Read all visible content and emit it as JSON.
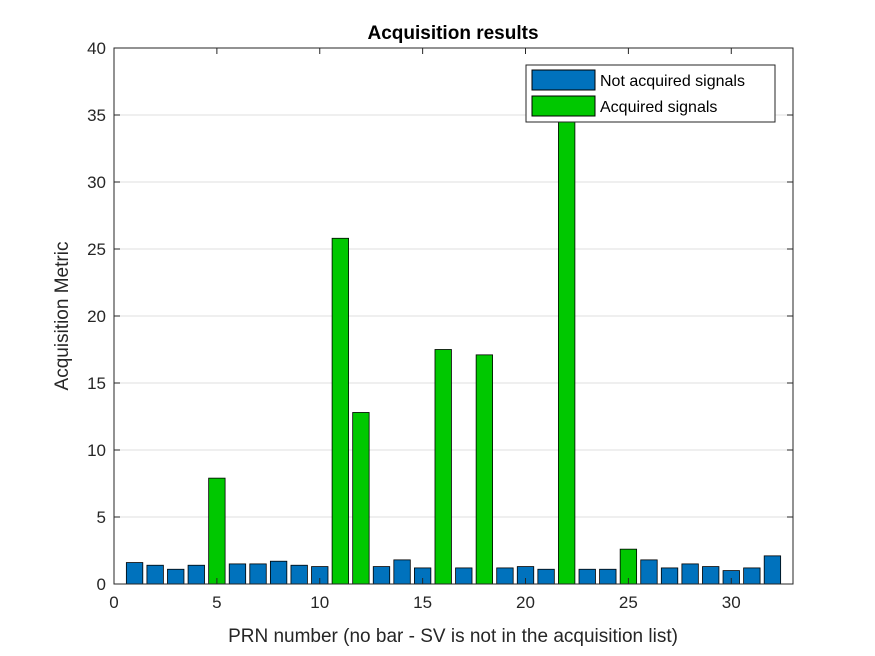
{
  "chart_data": {
    "type": "bar",
    "title": "Acquisition results",
    "xlabel": "PRN number (no bar - SV is not in the acquisition list)",
    "ylabel": "Acquisition Metric",
    "xlim": [
      0,
      33
    ],
    "ylim": [
      0,
      40
    ],
    "xticks": [
      0,
      5,
      10,
      15,
      20,
      25,
      30
    ],
    "yticks": [
      0,
      5,
      10,
      15,
      20,
      25,
      30,
      35,
      40
    ],
    "grid": "horizontal",
    "legend_position": "top-right",
    "categories": [
      1,
      2,
      3,
      4,
      5,
      6,
      7,
      8,
      9,
      10,
      11,
      12,
      13,
      14,
      15,
      16,
      17,
      18,
      19,
      20,
      21,
      22,
      23,
      24,
      25,
      26,
      27,
      28,
      29,
      30,
      31,
      32
    ],
    "series": [
      {
        "name": "Not acquired signals",
        "color": "#0072BD",
        "values": [
          1.6,
          1.4,
          1.1,
          1.4,
          null,
          1.5,
          1.5,
          1.7,
          1.4,
          1.3,
          null,
          null,
          1.3,
          1.8,
          1.2,
          null,
          1.2,
          null,
          1.2,
          1.3,
          1.1,
          null,
          1.1,
          1.1,
          null,
          1.8,
          1.2,
          1.5,
          1.3,
          1.0,
          1.2,
          2.1
        ]
      },
      {
        "name": "Acquired signals",
        "color": "#00C800",
        "values": [
          null,
          null,
          null,
          null,
          7.9,
          null,
          null,
          null,
          null,
          null,
          25.8,
          12.8,
          null,
          null,
          null,
          17.5,
          null,
          17.1,
          null,
          null,
          null,
          34.6,
          null,
          null,
          2.6,
          null,
          null,
          null,
          null,
          null,
          null,
          null
        ]
      }
    ]
  }
}
